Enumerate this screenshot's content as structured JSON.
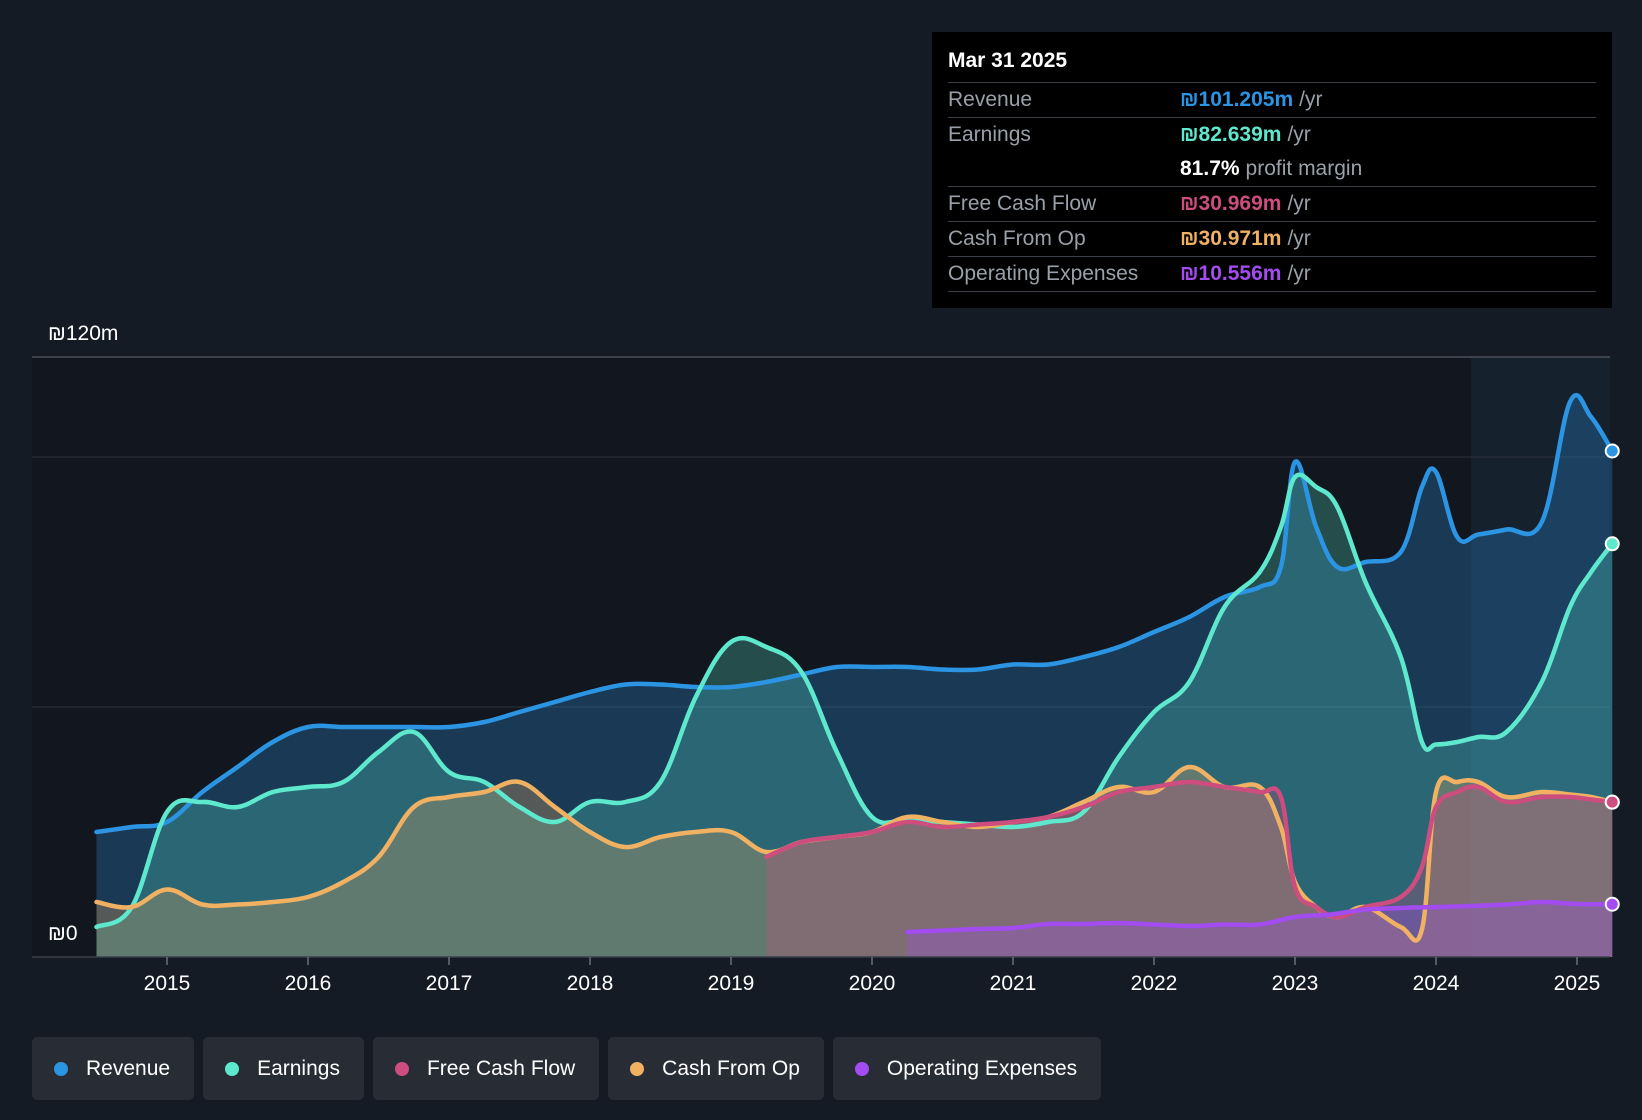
{
  "chart_data": {
    "type": "area",
    "currency_unit": "₪",
    "y_top_label": "₪120m",
    "y_zero_label": "₪0",
    "ylim": [
      0,
      120
    ],
    "xlim": [
      2014.5,
      2025.25
    ],
    "x_ticks": [
      2015,
      2016,
      2017,
      2018,
      2019,
      2020,
      2021,
      2022,
      2023,
      2024,
      2025
    ],
    "x_tick_labels": [
      "2015",
      "2016",
      "2017",
      "2018",
      "2019",
      "2020",
      "2021",
      "2022",
      "2023",
      "2024",
      "2025"
    ],
    "gridlines": [
      50,
      100,
      120
    ],
    "highlight_start": 2024.25,
    "series": [
      {
        "name": "Revenue",
        "color": "#2b95e3",
        "x": [
          2014.5,
          2014.75,
          2015.0,
          2015.25,
          2015.5,
          2015.75,
          2016.0,
          2016.25,
          2016.5,
          2016.75,
          2017.0,
          2017.25,
          2017.5,
          2017.75,
          2018.0,
          2018.25,
          2018.5,
          2018.75,
          2019.0,
          2019.25,
          2019.5,
          2019.75,
          2020.0,
          2020.25,
          2020.5,
          2020.75,
          2021.0,
          2021.25,
          2021.5,
          2021.75,
          2022.0,
          2022.25,
          2022.5,
          2022.75,
          2022.9,
          2023.0,
          2023.15,
          2023.3,
          2023.5,
          2023.75,
          2023.9,
          2024.0,
          2024.15,
          2024.3,
          2024.5,
          2024.75,
          2024.95,
          2025.1,
          2025.25
        ],
        "values": [
          25,
          26,
          27,
          33,
          38,
          43,
          46,
          46,
          46,
          46,
          46,
          47,
          49,
          51,
          53,
          54.5,
          54.5,
          54,
          54,
          55,
          56.5,
          58,
          58,
          58,
          57.5,
          57.5,
          58.5,
          58.5,
          60,
          62,
          65,
          68,
          72,
          74,
          78,
          99,
          86,
          78,
          79,
          81,
          94,
          97,
          84,
          84.5,
          85.5,
          87,
          111,
          108,
          101.205
        ]
      },
      {
        "name": "Earnings",
        "color": "#5ee8cd",
        "x": [
          2014.5,
          2014.75,
          2015.0,
          2015.25,
          2015.5,
          2015.75,
          2016.0,
          2016.25,
          2016.5,
          2016.75,
          2017.0,
          2017.25,
          2017.5,
          2017.75,
          2018.0,
          2018.25,
          2018.5,
          2018.75,
          2019.0,
          2019.25,
          2019.5,
          2019.75,
          2020.0,
          2020.25,
          2020.5,
          2020.75,
          2021.0,
          2021.25,
          2021.5,
          2021.75,
          2022.0,
          2022.25,
          2022.5,
          2022.75,
          2022.9,
          2023.0,
          2023.15,
          2023.3,
          2023.5,
          2023.75,
          2023.9,
          2024.0,
          2024.15,
          2024.3,
          2024.5,
          2024.75,
          2024.95,
          2025.1,
          2025.25
        ],
        "values": [
          6,
          10,
          29,
          31,
          30,
          33,
          34,
          35,
          41,
          45,
          37,
          35,
          30,
          27,
          31,
          31,
          35,
          52,
          63,
          62,
          57,
          41,
          28,
          27.5,
          27,
          26.5,
          26,
          27,
          29,
          40,
          49,
          55,
          70,
          77,
          86,
          96,
          94,
          90,
          75,
          60,
          43,
          42.5,
          43,
          44,
          45,
          55,
          70,
          77,
          82.639
        ]
      },
      {
        "name": "Free Cash Flow",
        "color": "#cc4d7e",
        "x": [
          2019.25,
          2019.5,
          2019.75,
          2020.0,
          2020.25,
          2020.5,
          2020.75,
          2021.0,
          2021.25,
          2021.5,
          2021.75,
          2022.0,
          2022.25,
          2022.5,
          2022.75,
          2022.9,
          2023.0,
          2023.15,
          2023.3,
          2023.5,
          2023.75,
          2023.9,
          2024.0,
          2024.15,
          2024.3,
          2024.5,
          2024.75,
          2024.95,
          2025.1,
          2025.25
        ],
        "values": [
          20,
          23,
          24,
          25,
          27,
          26,
          26.5,
          27,
          28,
          30,
          33,
          34,
          35,
          34,
          33,
          32,
          14,
          10,
          8,
          10,
          12,
          18,
          30,
          33,
          34,
          31,
          32,
          32,
          31.5,
          30.969
        ]
      },
      {
        "name": "Cash From Op",
        "color": "#f0b163",
        "x": [
          2014.5,
          2014.75,
          2015.0,
          2015.25,
          2015.5,
          2015.75,
          2016.0,
          2016.25,
          2016.5,
          2016.75,
          2017.0,
          2017.25,
          2017.5,
          2017.75,
          2018.0,
          2018.25,
          2018.5,
          2018.75,
          2019.0,
          2019.25,
          2019.5,
          2019.75,
          2020.0,
          2020.25,
          2020.5,
          2020.75,
          2021.0,
          2021.25,
          2021.5,
          2021.75,
          2022.0,
          2022.25,
          2022.5,
          2022.75,
          2022.9,
          2023.0,
          2023.15,
          2023.3,
          2023.5,
          2023.75,
          2023.9,
          2024.0,
          2024.15,
          2024.3,
          2024.5,
          2024.75,
          2024.95,
          2025.1,
          2025.25
        ],
        "values": [
          11,
          10,
          13.5,
          10.5,
          10.5,
          11,
          12,
          15,
          20,
          30,
          32,
          33,
          35,
          30,
          25,
          22,
          24,
          25,
          25,
          21,
          23,
          24,
          25,
          28,
          27,
          26,
          27,
          28,
          31,
          34,
          33,
          38,
          34,
          34,
          26,
          15,
          10,
          8,
          10,
          6,
          5.5,
          33,
          35,
          35,
          32,
          33,
          32.5,
          32,
          30.971
        ]
      },
      {
        "name": "Operating Expenses",
        "color": "#a34cf0",
        "x": [
          2020.25,
          2020.5,
          2020.75,
          2021.0,
          2021.25,
          2021.5,
          2021.75,
          2022.0,
          2022.25,
          2022.5,
          2022.75,
          2023.0,
          2023.25,
          2023.5,
          2023.75,
          2024.0,
          2024.25,
          2024.5,
          2024.75,
          2025.0,
          2025.25
        ],
        "values": [
          5,
          5.3,
          5.6,
          5.8,
          6.6,
          6.6,
          6.8,
          6.5,
          6.2,
          6.5,
          6.5,
          8,
          8.5,
          9.5,
          9.8,
          10,
          10.2,
          10.5,
          11,
          10.6,
          10.556
        ]
      }
    ]
  },
  "tooltip": {
    "date": "Mar 31 2025",
    "unit_suffix": "/yr",
    "rows": [
      {
        "label": "Revenue",
        "value": "₪101.205m",
        "color": "#2b95e3"
      },
      {
        "label": "Earnings",
        "value": "₪82.639m",
        "color": "#5ee8cd"
      },
      {
        "label": "Free Cash Flow",
        "value": "₪30.969m",
        "color": "#cc4d7e"
      },
      {
        "label": "Cash From Op",
        "value": "₪30.971m",
        "color": "#f0b163"
      },
      {
        "label": "Operating Expenses",
        "value": "₪10.556m",
        "color": "#a34cf0"
      }
    ],
    "margin_value": "81.7%",
    "margin_label": "profit margin"
  },
  "legend": [
    {
      "label": "Revenue",
      "color": "#2b95e3"
    },
    {
      "label": "Earnings",
      "color": "#5ee8cd"
    },
    {
      "label": "Free Cash Flow",
      "color": "#cc4d7e"
    },
    {
      "label": "Cash From Op",
      "color": "#f0b163"
    },
    {
      "label": "Operating Expenses",
      "color": "#a34cf0"
    }
  ]
}
